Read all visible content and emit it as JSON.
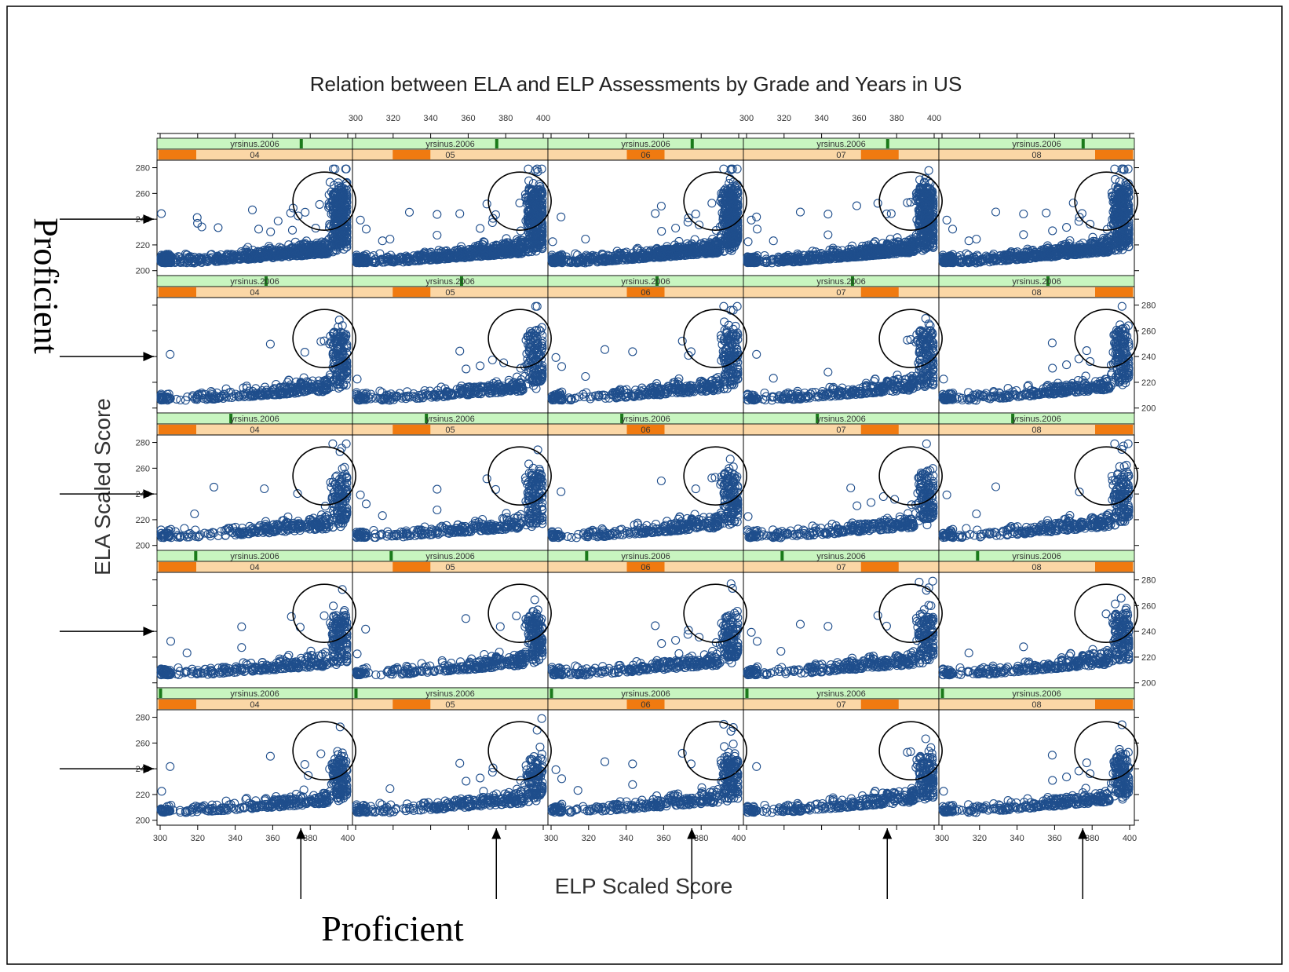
{
  "chart_data": {
    "type": "scatter",
    "title": "Relation between ELA and ELP Assessments by Grade and Years in US",
    "xlabel": "ELP Scaled Score",
    "ylabel": "ELA Scaled Score",
    "xlim": [
      300,
      400
    ],
    "ylim": [
      198,
      284
    ],
    "x_ticks": [
      "300",
      "320",
      "340",
      "360",
      "380",
      "400"
    ],
    "y_ticks": [
      "200",
      "220",
      "240",
      "260",
      "280"
    ],
    "grid": false,
    "strip_top_label": "yrsinus.2006",
    "grades": [
      "04",
      "05",
      "06",
      "07",
      "08"
    ],
    "rows": 5,
    "columns": 5,
    "point_color": "#1f4e8c",
    "strip_top_color": "#c8f5c0",
    "strip_top_marker_color": "#1a7a1a",
    "strip_bottom_color": "#fbd7a6",
    "strip_bottom_marker_color": "#f07a10",
    "proficient_ela": 240,
    "proficient_elp": 375,
    "proficient_label": "Proficient",
    "circle_region": {
      "x": [
        375,
        400
      ],
      "y": [
        240,
        268
      ]
    }
  }
}
